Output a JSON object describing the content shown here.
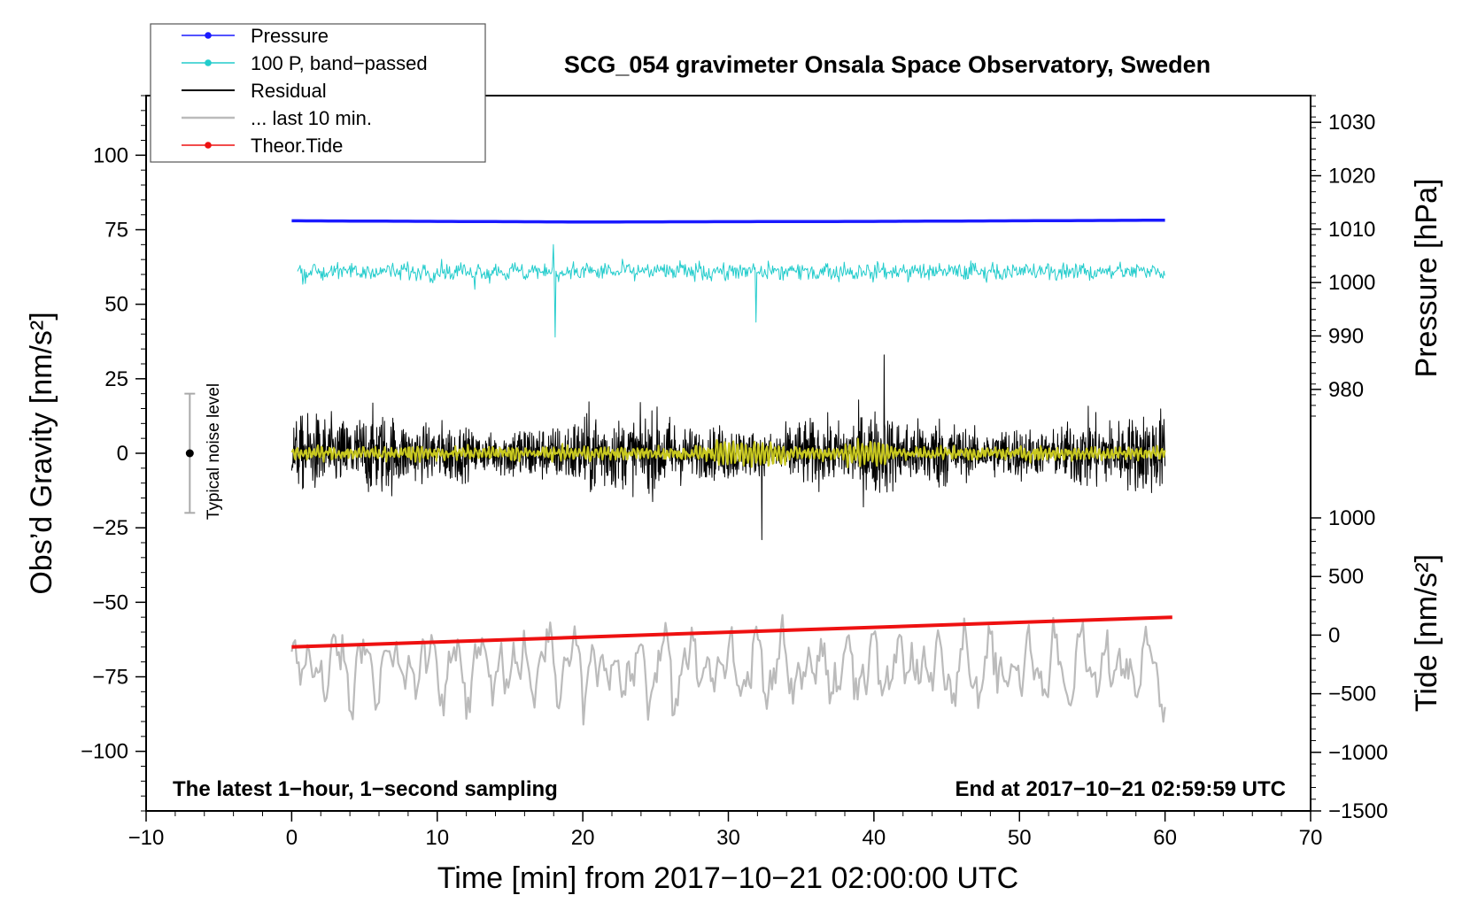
{
  "chart_data": {
    "type": "line",
    "title": "SCG_054 gravimeter Onsala Space Observatory, Sweden",
    "xlabel": "Time [min] from 2017−10−21 02:00:00 UTC",
    "ylabel_left": "Obs’d Gravity [nm/s²]",
    "ylabel_right_pressure": "Pressure [hPa]",
    "ylabel_right_tide": "Tide [nm/s²]",
    "xlim": [
      -10,
      70
    ],
    "ylim": [
      -120,
      120
    ],
    "x_ticks": [
      "−10",
      "0",
      "10",
      "20",
      "30",
      "40",
      "50",
      "60",
      "70"
    ],
    "y_ticks": [
      "−100",
      "−75",
      "−50",
      "−25",
      "0",
      "25",
      "50",
      "75",
      "100"
    ],
    "pressure_axis_ticks": [
      "980",
      "990",
      "1000",
      "1010",
      "1020",
      "1030"
    ],
    "pressure_axis_range": [
      975,
      1035
    ],
    "tide_axis_ticks": [
      "−1500",
      "−1000",
      "−500",
      "0",
      "500",
      "1000"
    ],
    "tide_axis_range": [
      -1500,
      1000
    ],
    "legend": {
      "position": "top-left",
      "entries": [
        {
          "label": "Pressure",
          "color": "#1a1aff",
          "marker": true
        },
        {
          "label": "100 P, band−passed",
          "color": "#22cccc",
          "marker": true
        },
        {
          "label": "Residual",
          "color": "#000000",
          "marker": false
        },
        {
          "label": "... last 10 min.",
          "color": "#bbbbbb",
          "marker": false
        },
        {
          "label": "Theor.Tide",
          "color": "#ee1111",
          "marker": true
        }
      ]
    },
    "annotations": {
      "bottom_left": "The latest 1−hour, 1−second sampling",
      "bottom_right": "End at 2017−10−21 02:59:59 UTC",
      "noise": "Typical noise level",
      "noise_bar": {
        "x": -7,
        "center": 0,
        "half_range": 20
      }
    },
    "series": [
      {
        "name": "Pressure",
        "color": "#1a1aff",
        "x_range": [
          0,
          60
        ],
        "values_hpa": [
          1010.3,
          1010.2,
          1010.3,
          1010.5
        ],
        "values_plot_units": [
          78,
          77.6,
          77.8,
          78.2
        ]
      },
      {
        "name": "100 P, band−passed",
        "color": "#22cccc",
        "x_range": [
          0,
          60
        ],
        "center": 61,
        "typical_amplitude": 4,
        "spikes": [
          [
            18.1,
            -22
          ],
          [
            18.0,
            9
          ],
          [
            31.9,
            -17
          ],
          [
            12.6,
            -6
          ]
        ]
      },
      {
        "name": "Residual",
        "color": "#000000",
        "x_range": [
          0,
          60
        ],
        "center": 0,
        "typical_amplitude": 12,
        "extremes": [
          33,
          -29
        ]
      },
      {
        "name": "Residual smoothed",
        "color": "#c8c820",
        "x_range": [
          0,
          60
        ],
        "center": 0,
        "typical_amplitude": 4
      },
      {
        "name": "... last 10 min.",
        "color": "#bbbbbb",
        "x_range": [
          0,
          60
        ],
        "center": -72,
        "range": [
          -98,
          -47
        ]
      },
      {
        "name": "Theor.Tide",
        "color": "#ee1111",
        "x": [
          0,
          60.5
        ],
        "values_plot_units": [
          -65.0,
          -55.0
        ]
      }
    ]
  }
}
